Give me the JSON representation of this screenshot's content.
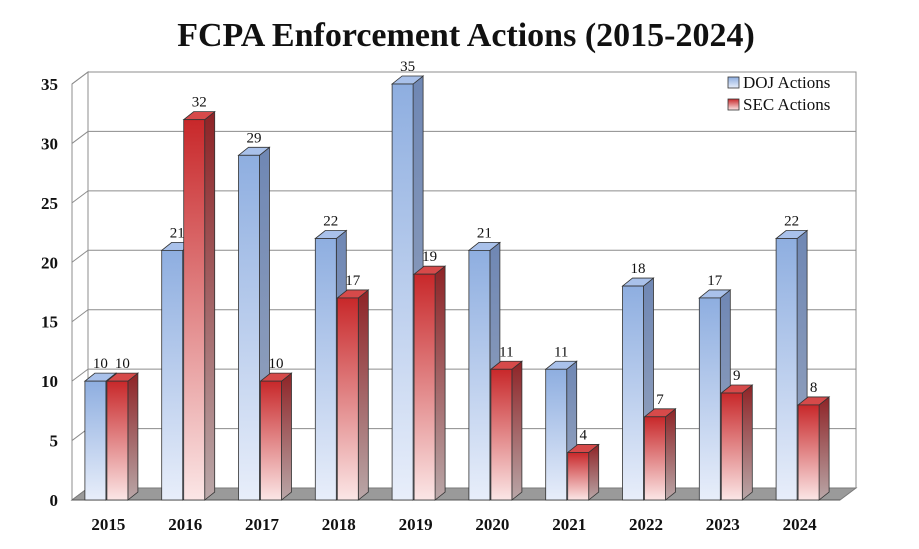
{
  "chart_data": {
    "type": "bar",
    "title": "FCPA Enforcement Actions (2015-2024)",
    "xlabel": "",
    "ylabel": "",
    "ylim": [
      0,
      35
    ],
    "yticks": [
      0,
      5,
      10,
      15,
      20,
      25,
      30,
      35
    ],
    "grid": true,
    "legend_position": "top-right",
    "categories": [
      "2015",
      "2016",
      "2017",
      "2018",
      "2019",
      "2020",
      "2021",
      "2022",
      "2023",
      "2024"
    ],
    "series": [
      {
        "name": "DOJ Actions",
        "values": [
          10,
          21,
          29,
          22,
          35,
          21,
          11,
          18,
          17,
          22
        ],
        "color_top": "#8eaee0",
        "color_bottom": "#e8eefa",
        "color_side": "#6f87b4",
        "color_cap": "#a9c1ea"
      },
      {
        "name": "SEC Actions",
        "values": [
          10,
          32,
          10,
          17,
          19,
          11,
          4,
          7,
          9,
          8
        ],
        "color_top": "#c8282a",
        "color_bottom": "#fbe6e6",
        "color_side": "#8e2326",
        "color_cap": "#d64a4a"
      }
    ]
  }
}
